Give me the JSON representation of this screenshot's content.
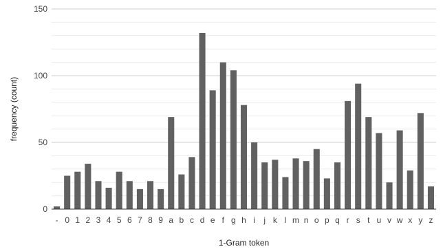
{
  "chart_data": {
    "type": "bar",
    "title": "",
    "xlabel": "1-Gram token",
    "ylabel": "frequency (count)",
    "ylim": [
      0,
      150
    ],
    "yticks": [
      0,
      50,
      100,
      150
    ],
    "grid": true,
    "legend": "none",
    "bar_color": "#616161",
    "categories": [
      "-",
      "0",
      "1",
      "2",
      "3",
      "4",
      "5",
      "6",
      "7",
      "8",
      "9",
      "a",
      "b",
      "c",
      "d",
      "e",
      "f",
      "g",
      "h",
      "i",
      "j",
      "k",
      "l",
      "m",
      "n",
      "o",
      "p",
      "q",
      "r",
      "s",
      "t",
      "u",
      "v",
      "w",
      "x",
      "y",
      "z"
    ],
    "values": [
      2,
      25,
      28,
      34,
      21,
      16,
      28,
      21,
      15,
      21,
      15,
      69,
      26,
      39,
      132,
      89,
      110,
      104,
      78,
      50,
      35,
      37,
      24,
      38,
      36,
      45,
      23,
      35,
      81,
      94,
      69,
      57,
      20,
      59,
      29,
      72,
      17
    ]
  }
}
